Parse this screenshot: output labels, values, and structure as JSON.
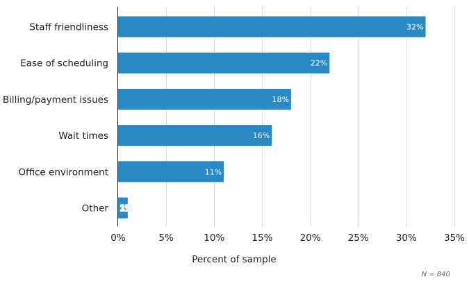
{
  "chart_data": {
    "type": "bar",
    "orientation": "horizontal",
    "categories": [
      "Staff friendliness",
      "Ease of scheduling",
      "Billing/payment issues",
      "Wait times",
      "Office environment",
      "Other"
    ],
    "values": [
      32,
      22,
      18,
      16,
      11,
      1
    ],
    "value_labels": [
      "32%",
      "22%",
      "18%",
      "16%",
      "11%",
      "1%"
    ],
    "title": "",
    "xlabel": "Percent of sample",
    "ylabel": "",
    "xlim": [
      0,
      35
    ],
    "x_ticks": [
      "0%",
      "5%",
      "10%",
      "15%",
      "20%",
      "25%",
      "30%",
      "35%"
    ],
    "grid": true,
    "bar_color": "#2a88c5",
    "note": "N = 840"
  }
}
